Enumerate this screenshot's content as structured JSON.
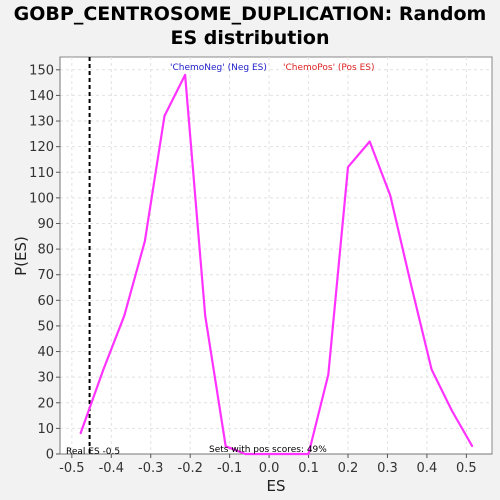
{
  "chart_data": {
    "type": "line",
    "title_line1": "GOBP_CENTROSOME_DUPLICATION: Random",
    "title_line2": "ES distribution",
    "xlabel": "ES",
    "ylabel": "P(ES)",
    "xlim": [
      -0.53,
      0.565
    ],
    "ylim": [
      0,
      155
    ],
    "x_ticks": [
      -0.5,
      -0.4,
      -0.3,
      -0.2,
      -0.1,
      0.0,
      0.1,
      0.2,
      0.3,
      0.4,
      0.5
    ],
    "x_tick_labels": [
      "-0.5",
      "-0.4",
      "-0.3",
      "-0.2",
      "-0.1",
      "0.0",
      "0.1",
      "0.2",
      "0.3",
      "0.4",
      "0.5"
    ],
    "y_ticks": [
      0,
      10,
      20,
      30,
      40,
      50,
      60,
      70,
      80,
      90,
      100,
      110,
      120,
      130,
      140,
      150
    ],
    "y_tick_labels": [
      "0",
      "10",
      "20",
      "30",
      "40",
      "50",
      "60",
      "70",
      "80",
      "90",
      "100",
      "110",
      "120",
      "130",
      "140",
      "150"
    ],
    "grid": true,
    "series": [
      {
        "color": "#ff33ff",
        "x": [
          -0.478,
          -0.42,
          -0.367,
          -0.315,
          -0.265,
          -0.213,
          -0.162,
          -0.11,
          -0.06,
          -0.01,
          0.045,
          0.1,
          0.15,
          0.2,
          0.255,
          0.307,
          0.36,
          0.412,
          0.463,
          0.515
        ],
        "y": [
          8,
          33,
          54,
          83,
          132,
          148,
          54,
          3,
          0,
          0,
          0,
          0,
          31,
          112,
          122,
          101,
          66,
          33,
          17,
          3
        ]
      }
    ],
    "real_es": -0.5,
    "real_es_x": -0.455,
    "legend": [
      {
        "label": "'ChemoNeg' (Neg ES)",
        "color": "#2222cc"
      },
      {
        "label": "'ChemoPos' (Pos ES)",
        "color": "#dd2222"
      }
    ],
    "annotations": {
      "real_es": "Real ES -0.5",
      "pos_scores": "Sets with pos scores: 49%"
    }
  }
}
